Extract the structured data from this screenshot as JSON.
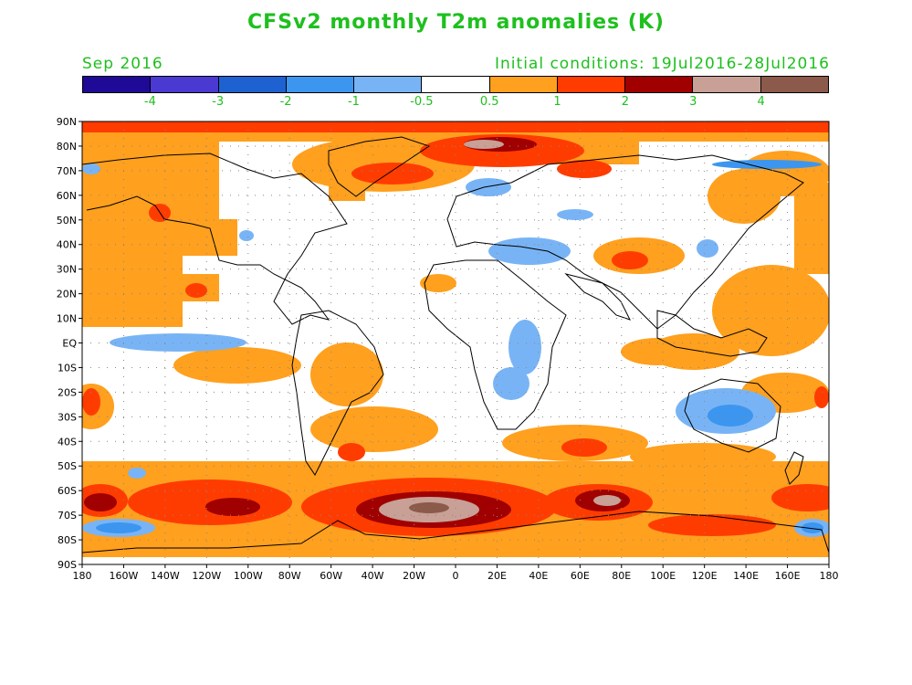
{
  "title": "CFSv2 monthly T2m anomalies (K)",
  "month": "Sep 2016",
  "initial_conditions": "Initial conditions: 19Jul2016-28Jul2016",
  "colorbar": {
    "colors": [
      "#1e0a96",
      "#4a3ad2",
      "#1e62d2",
      "#3c96f0",
      "#78b4f5",
      "#ffffff",
      "#ffa01e",
      "#ff3c00",
      "#a00000",
      "#c8a096",
      "#8c5a4a"
    ],
    "labels": [
      "-4",
      "-3",
      "-2",
      "-1",
      "-0.5",
      "0.5",
      "1",
      "2",
      "3",
      "4"
    ]
  },
  "axes": {
    "lat_labels": [
      "90N",
      "80N",
      "70N",
      "60N",
      "50N",
      "40N",
      "30N",
      "20N",
      "10N",
      "EQ",
      "10S",
      "20S",
      "30S",
      "40S",
      "50S",
      "60S",
      "70S",
      "80S",
      "90S"
    ],
    "lon_labels": [
      "180",
      "160W",
      "140W",
      "120W",
      "100W",
      "80W",
      "60W",
      "40W",
      "20W",
      "0",
      "20E",
      "40E",
      "60E",
      "80E",
      "100E",
      "120E",
      "140E",
      "160E",
      "180"
    ]
  }
}
